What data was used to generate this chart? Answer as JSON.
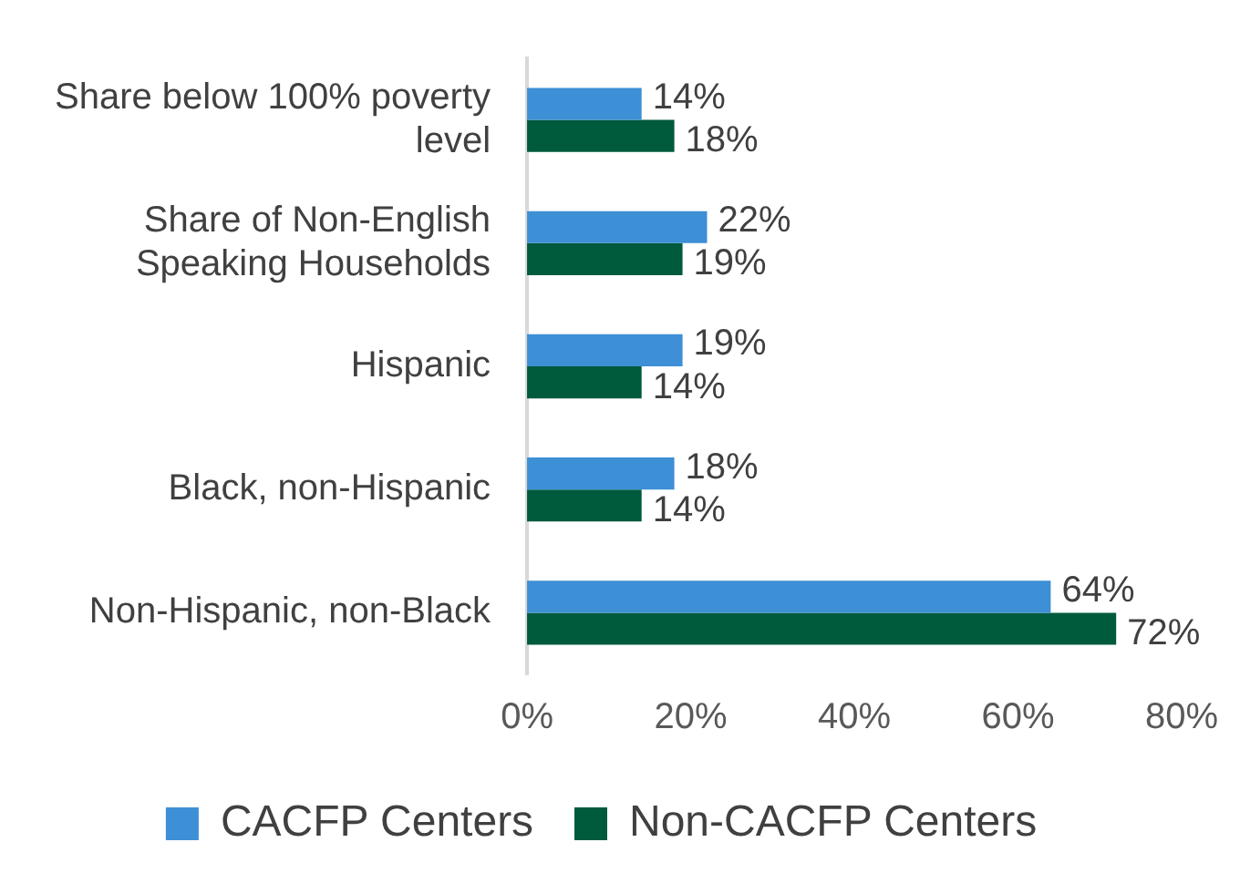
{
  "chart_data": {
    "type": "bar",
    "orientation": "horizontal",
    "categories": [
      "Share below 100% poverty level",
      "Share of Non-English Speaking Households",
      "Hispanic",
      "Black, non-Hispanic",
      "Non-Hispanic, non-Black"
    ],
    "series": [
      {
        "name": "CACFP Centers",
        "color": "#3d8fd6",
        "values": [
          14,
          22,
          19,
          18,
          64
        ],
        "value_labels": [
          "14%",
          "22%",
          "19%",
          "18%",
          "64%"
        ]
      },
      {
        "name": "Non-CACFP Centers",
        "color": "#005a3c",
        "values": [
          18,
          19,
          14,
          14,
          72
        ],
        "value_labels": [
          "18%",
          "19%",
          "14%",
          "14%",
          "72%"
        ]
      }
    ],
    "xlim": [
      0,
      80
    ],
    "xticks": [
      {
        "value": 0,
        "label": "0%"
      },
      {
        "value": 20,
        "label": "20%"
      },
      {
        "value": 40,
        "label": "40%"
      },
      {
        "value": 60,
        "label": "60%"
      },
      {
        "value": 80,
        "label": "80%"
      }
    ],
    "grid": false,
    "legend": "bottom"
  }
}
